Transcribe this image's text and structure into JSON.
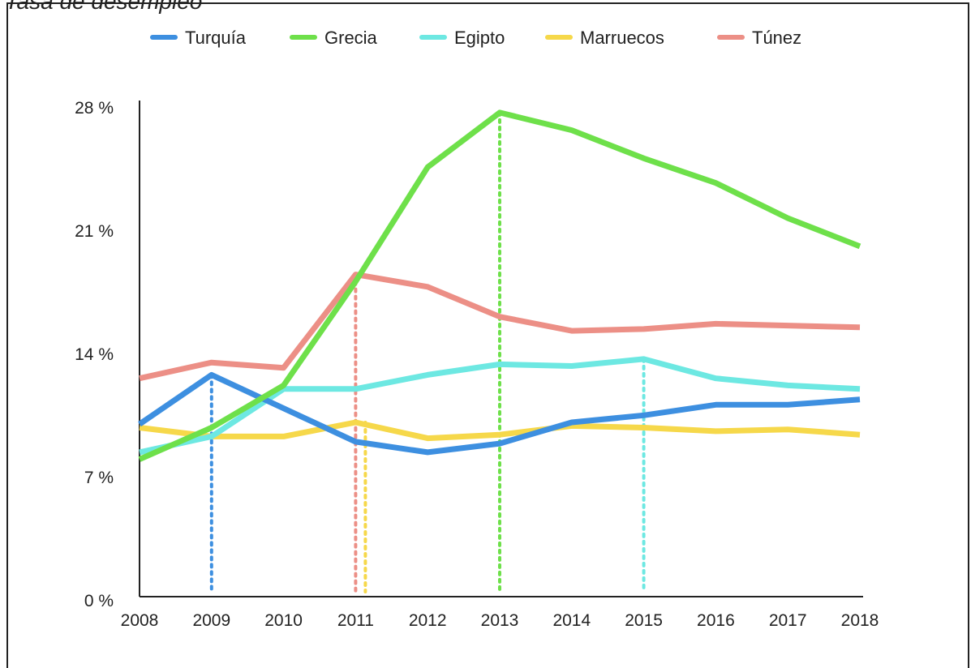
{
  "caption": "Tasa de desempleo",
  "chart_data": {
    "type": "line",
    "x": [
      "2008",
      "2009",
      "2010",
      "2011",
      "2012",
      "2013",
      "2014",
      "2015",
      "2016",
      "2017",
      "2018"
    ],
    "yticks": [
      0,
      7,
      14,
      21,
      28
    ],
    "ytick_labels": [
      "0 %",
      "7 %",
      "14 %",
      "21 %",
      "28 %"
    ],
    "ylim": [
      0,
      28
    ],
    "legend_position": "top",
    "grid": false,
    "series": [
      {
        "name": "Turquía",
        "color": "#3d8fe0",
        "values": [
          9.8,
          12.6,
          10.7,
          8.8,
          8.2,
          8.7,
          9.9,
          10.3,
          10.9,
          10.9,
          11.2
        ],
        "peak_year": "2009"
      },
      {
        "name": "Grecia",
        "color": "#6ee04a",
        "values": [
          7.8,
          9.6,
          12.0,
          17.9,
          24.4,
          27.5,
          26.5,
          24.9,
          23.5,
          21.5,
          19.9
        ],
        "peak_year": "2013"
      },
      {
        "name": "Egipto",
        "color": "#6de8e2",
        "values": [
          8.2,
          9.1,
          11.8,
          11.8,
          12.6,
          13.2,
          13.1,
          13.5,
          12.4,
          12.0,
          11.8
        ],
        "peak_year": "2015"
      },
      {
        "name": "Marruecos",
        "color": "#f6d84a",
        "values": [
          9.6,
          9.1,
          9.1,
          9.9,
          9.0,
          9.2,
          9.7,
          9.6,
          9.4,
          9.5,
          9.2
        ],
        "peak_year": "2011"
      },
      {
        "name": "Túnez",
        "color": "#ec8f86",
        "values": [
          12.4,
          13.3,
          13.0,
          18.3,
          17.6,
          15.9,
          15.1,
          15.2,
          15.5,
          15.4,
          15.3
        ],
        "peak_year": "2011"
      }
    ]
  }
}
